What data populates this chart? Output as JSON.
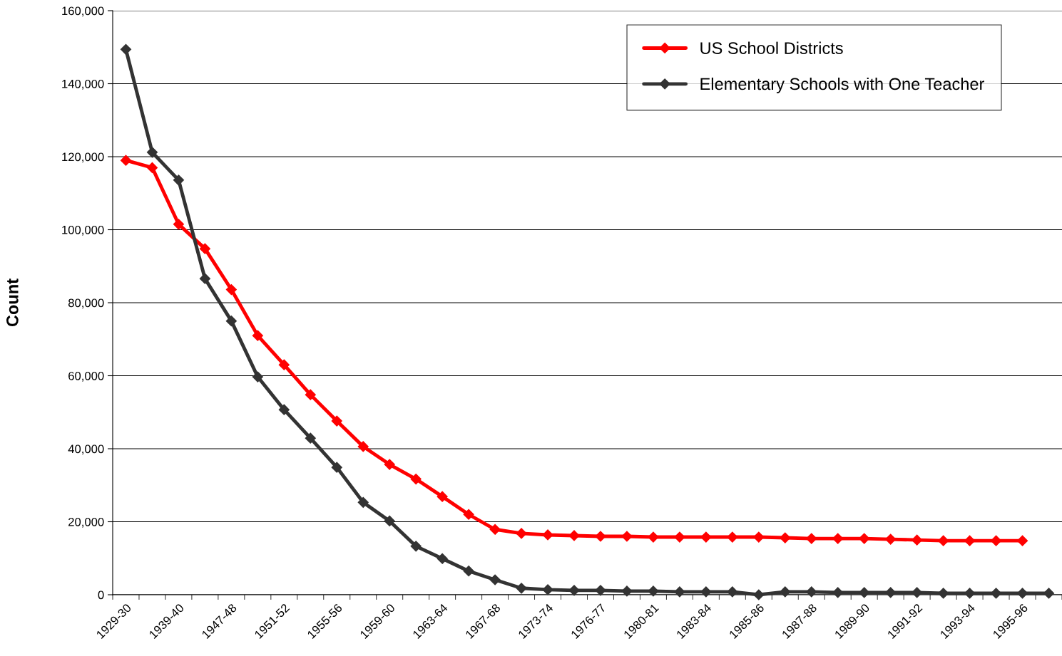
{
  "chart_data": {
    "type": "line",
    "ylabel": "Count",
    "categories": [
      "1929-30",
      null,
      "1939-40",
      null,
      "1947-48",
      null,
      "1951-52",
      null,
      "1955-56",
      null,
      "1959-60",
      null,
      "1963-64",
      null,
      "1967-68",
      null,
      "1973-74",
      null,
      "1976-77",
      null,
      "1980-81",
      null,
      "1983-84",
      null,
      "1985-86",
      null,
      "1987-88",
      null,
      "1989-90",
      null,
      "1991-92",
      null,
      "1993-94",
      null,
      "1995-96",
      null
    ],
    "series": [
      {
        "name": "US School Districts",
        "color": "#ff0000",
        "values": [
          119000,
          117000,
          101500,
          94800,
          83600,
          71000,
          63000,
          54800,
          47600,
          40600,
          35700,
          31700,
          26900,
          22000,
          17900,
          16800,
          16400,
          16200,
          16000,
          16000,
          15800,
          15800,
          15800,
          15800,
          15800,
          15600,
          15400,
          15400,
          15400,
          15200,
          15000,
          14800,
          14800,
          14800,
          14800,
          null
        ]
      },
      {
        "name": "Elementary Schools with One Teacher",
        "color": "#333333",
        "values": [
          149400,
          121200,
          113600,
          86600,
          75000,
          59700,
          50700,
          42900,
          34900,
          25300,
          20200,
          13300,
          9900,
          6500,
          4100,
          1800,
          1400,
          1200,
          1200,
          1000,
          1000,
          800,
          800,
          800,
          0,
          800,
          800,
          600,
          600,
          600,
          600,
          400,
          400,
          400,
          400,
          400
        ]
      }
    ],
    "ylim": [
      0,
      160000
    ],
    "yticks": [
      {
        "value": 0,
        "label": "0"
      },
      {
        "value": 20000,
        "label": "20,000"
      },
      {
        "value": 40000,
        "label": "40,000"
      },
      {
        "value": 60000,
        "label": "60,000"
      },
      {
        "value": 80000,
        "label": "80,000"
      },
      {
        "value": 100000,
        "label": "100,000"
      },
      {
        "value": 120000,
        "label": "120,000"
      },
      {
        "value": 140000,
        "label": "140,000"
      },
      {
        "value": 160000,
        "label": "160,000"
      }
    ],
    "grid": "y",
    "legend": "top right",
    "marker": "diamond",
    "line_style": "solid"
  }
}
